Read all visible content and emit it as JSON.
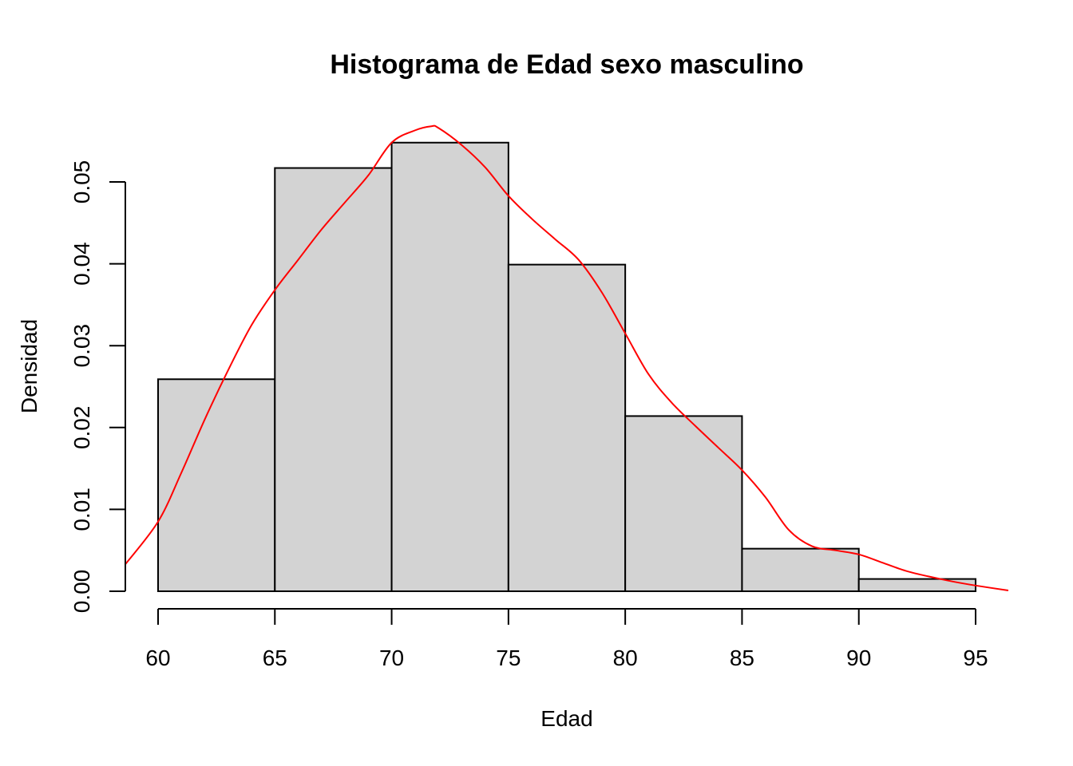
{
  "chart_data": {
    "type": "bar",
    "subtype": "histogram",
    "title": "Histograma de Edad sexo masculino",
    "xlabel": "Edad",
    "ylabel": "Densidad",
    "bins": [
      {
        "start": 60,
        "end": 65,
        "density": 0.0259
      },
      {
        "start": 65,
        "end": 70,
        "density": 0.0517
      },
      {
        "start": 70,
        "end": 75,
        "density": 0.0548
      },
      {
        "start": 75,
        "end": 80,
        "density": 0.0399
      },
      {
        "start": 80,
        "end": 85,
        "density": 0.0214
      },
      {
        "start": 85,
        "end": 90,
        "density": 0.0052
      },
      {
        "start": 90,
        "end": 95,
        "density": 0.0015
      }
    ],
    "x_ticks": [
      "60",
      "65",
      "70",
      "75",
      "80",
      "85",
      "90",
      "95"
    ],
    "y_ticks": [
      "0.00",
      "0.01",
      "0.02",
      "0.03",
      "0.04",
      "0.05"
    ],
    "xlim": [
      58.6,
      96.4
    ],
    "ylim": [
      0,
      0.057
    ],
    "grid": false,
    "bar_color": "#d3d3d3",
    "density_curve": {
      "color": "#ff0000",
      "x": [
        58.6,
        60,
        61,
        62,
        63,
        64,
        65,
        66,
        67,
        68,
        69,
        70,
        71,
        71.7,
        72,
        73,
        74,
        75,
        76,
        77,
        78,
        79,
        80,
        81,
        82,
        83,
        84,
        85,
        86,
        87,
        88,
        89,
        90,
        91,
        92,
        93,
        94,
        95,
        96.4
      ],
      "y": [
        0.0033,
        0.0085,
        0.0145,
        0.021,
        0.027,
        0.0325,
        0.0368,
        0.0405,
        0.0442,
        0.0475,
        0.0508,
        0.0548,
        0.0563,
        0.0568,
        0.0566,
        0.0545,
        0.0518,
        0.0483,
        0.0455,
        0.043,
        0.0405,
        0.0365,
        0.0315,
        0.0265,
        0.023,
        0.0202,
        0.0175,
        0.0148,
        0.0115,
        0.0075,
        0.0055,
        0.005,
        0.0045,
        0.0035,
        0.0025,
        0.0018,
        0.0012,
        0.0007,
        0.0001
      ]
    }
  }
}
